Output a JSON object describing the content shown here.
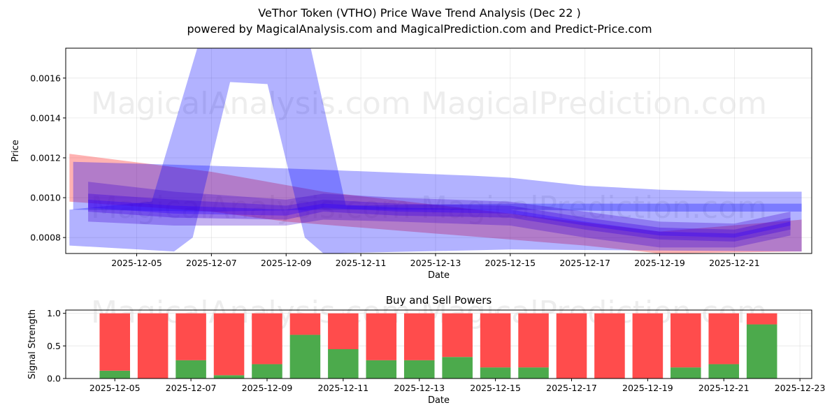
{
  "title": "VeThor Token (VTHO) Price Wave Trend Analysis (Dec 22 )",
  "subtitle": "powered by MagicalAnalysis.com and MagicalPrediction.com and Predict-Price.com",
  "watermarks": [
    "MagicalAnalysis.com",
    "MagicalPrediction.com"
  ],
  "chart_data": [
    {
      "type": "area",
      "title": "",
      "xlabel": "Date",
      "ylabel": "Price",
      "x_unit": "day of December 2025",
      "xlim": [
        3.1,
        23.07
      ],
      "ylim": [
        0.00072,
        0.00175
      ],
      "grid": true,
      "xticks": [
        5,
        7,
        9,
        11,
        13,
        15,
        17,
        19,
        21
      ],
      "xtick_labels": [
        "2025-12-05",
        "2025-12-07",
        "2025-12-09",
        "2025-12-11",
        "2025-12-13",
        "2025-12-15",
        "2025-12-17",
        "2025-12-19",
        "2025-12-21"
      ],
      "yticks": [
        0.0008,
        0.001,
        0.0012,
        0.0014,
        0.0016
      ],
      "ytick_labels": [
        "0.0008",
        "0.0010",
        "0.0012",
        "0.0014",
        "0.0016"
      ],
      "bands": [
        {
          "name": "red-trend-band",
          "color": "#ff0000",
          "opacity": 0.3,
          "upper": [
            [
              3.2,
              0.00122
            ],
            [
              7,
              0.00113
            ],
            [
              10,
              0.00103
            ],
            [
              15,
              0.00092
            ],
            [
              19,
              0.00083
            ],
            [
              22.8,
              0.00089
            ]
          ],
          "lower": [
            [
              3.2,
              0.00098
            ],
            [
              7,
              0.00093
            ],
            [
              9,
              0.00088
            ],
            [
              13,
              0.00082
            ],
            [
              17,
              0.00076
            ],
            [
              19,
              0.00072
            ],
            [
              22.8,
              0.00073
            ]
          ]
        },
        {
          "name": "blue-wide-band",
          "color": "#0000ff",
          "opacity": 0.3,
          "upper": [
            [
              3.3,
              0.00118
            ],
            [
              7,
              0.00116
            ],
            [
              10,
              0.00114
            ],
            [
              14,
              0.00111
            ],
            [
              15,
              0.0011
            ],
            [
              17,
              0.00106
            ],
            [
              19,
              0.00104
            ],
            [
              21,
              0.00103
            ],
            [
              22.8,
              0.00103
            ]
          ],
          "lower": [
            [
              3.3,
              0.00094
            ],
            [
              7,
              0.00093
            ],
            [
              10,
              0.00094
            ],
            [
              15,
              0.00094
            ],
            [
              19,
              0.00093
            ],
            [
              22.8,
              0.00093
            ]
          ]
        },
        {
          "name": "blue-spike-band",
          "color": "#0000ff",
          "opacity": 0.3,
          "upper": [
            [
              3.2,
              0.00094
            ],
            [
              5.4,
              0.00098
            ],
            [
              6.7,
              0.0018
            ],
            [
              9.6,
              0.0018
            ],
            [
              10.6,
              0.00096
            ],
            [
              15,
              0.00097
            ],
            [
              22.8,
              0.00097
            ]
          ],
          "lower": [
            [
              3.2,
              0.00076
            ],
            [
              6.0,
              0.00073
            ],
            [
              6.5,
              0.0008
            ],
            [
              7.5,
              0.00158
            ],
            [
              8.5,
              0.00157
            ],
            [
              9.5,
              0.0008
            ],
            [
              10.0,
              0.00072
            ],
            [
              15,
              0.00074
            ],
            [
              22.8,
              0.00073
            ]
          ]
        },
        {
          "name": "core-band-1",
          "color": "#4000d0",
          "opacity": 0.3,
          "upper": [
            [
              3.7,
              0.00108
            ],
            [
              6,
              0.00103
            ],
            [
              9,
              0.00099
            ],
            [
              10,
              0.00102
            ],
            [
              12,
              0.001
            ],
            [
              15,
              0.00098
            ],
            [
              17,
              0.00093
            ],
            [
              19,
              0.00088
            ],
            [
              21,
              0.00087
            ],
            [
              22.5,
              0.00093
            ]
          ],
          "lower": [
            [
              3.7,
              0.00088
            ],
            [
              6,
              0.00086
            ],
            [
              9,
              0.00086
            ],
            [
              10,
              0.00089
            ],
            [
              12,
              0.00088
            ],
            [
              15,
              0.00086
            ],
            [
              17,
              0.0008
            ],
            [
              19,
              0.00075
            ],
            [
              21,
              0.00075
            ],
            [
              22.5,
              0.00081
            ]
          ]
        },
        {
          "name": "core-band-2",
          "color": "#4000e0",
          "opacity": 0.35,
          "upper": [
            [
              3.7,
              0.00102
            ],
            [
              6,
              0.00099
            ],
            [
              9,
              0.00096
            ],
            [
              10,
              0.00099
            ],
            [
              12,
              0.00097
            ],
            [
              15,
              0.00096
            ],
            [
              17,
              0.0009
            ],
            [
              19,
              0.00085
            ],
            [
              21,
              0.00084
            ],
            [
              22.5,
              0.0009
            ]
          ],
          "lower": [
            [
              3.7,
              0.00093
            ],
            [
              6,
              0.0009
            ],
            [
              9,
              0.00089
            ],
            [
              10,
              0.00093
            ],
            [
              12,
              0.00091
            ],
            [
              15,
              0.0009
            ],
            [
              17,
              0.00084
            ],
            [
              19,
              0.00079
            ],
            [
              21,
              0.00078
            ],
            [
              22.5,
              0.00084
            ]
          ]
        },
        {
          "name": "core-band-3",
          "color": "#3000ff",
          "opacity": 0.35,
          "upper": [
            [
              3.7,
              0.00099
            ],
            [
              6,
              0.00096
            ],
            [
              9,
              0.00094
            ],
            [
              10,
              0.00097
            ],
            [
              12,
              0.00095
            ],
            [
              15,
              0.00094
            ],
            [
              17,
              0.00088
            ],
            [
              19,
              0.00083
            ],
            [
              21,
              0.00082
            ],
            [
              22.5,
              0.00088
            ]
          ],
          "lower": [
            [
              3.7,
              0.00095
            ],
            [
              6,
              0.00092
            ],
            [
              9,
              0.00091
            ],
            [
              10,
              0.00095
            ],
            [
              12,
              0.00093
            ],
            [
              15,
              0.00092
            ],
            [
              17,
              0.00086
            ],
            [
              19,
              0.00081
            ],
            [
              21,
              0.0008
            ],
            [
              22.5,
              0.00086
            ]
          ]
        }
      ]
    },
    {
      "type": "bar",
      "stacked": true,
      "title": "Buy and Sell Powers",
      "xlabel": "Date",
      "ylabel": "Signal Strength",
      "x_unit": "day of December 2025",
      "xlim": [
        3.71,
        23.31
      ],
      "ylim": [
        0,
        1.05
      ],
      "grid": true,
      "xticks": [
        5,
        7,
        9,
        11,
        13,
        15,
        17,
        19,
        21,
        23
      ],
      "xtick_labels": [
        "2025-12-05",
        "2025-12-07",
        "2025-12-09",
        "2025-12-11",
        "2025-12-13",
        "2025-12-15",
        "2025-12-17",
        "2025-12-19",
        "2025-12-21",
        "2025-12-23"
      ],
      "yticks": [
        0,
        0.5,
        1.0
      ],
      "ytick_labels": [
        "0.0",
        "0.5",
        "1.0"
      ],
      "x": [
        5,
        6,
        7,
        8,
        9,
        10,
        11,
        12,
        13,
        14,
        15,
        16,
        17,
        18,
        19,
        20,
        21,
        22
      ],
      "series": [
        {
          "name": "Buy",
          "color": "#4caa4c",
          "values": [
            0.12,
            0,
            0.28,
            0.05,
            0.22,
            0.67,
            0.45,
            0.28,
            0.28,
            0.33,
            0.17,
            0.17,
            0,
            0,
            0,
            0.17,
            0.22,
            0.83
          ]
        },
        {
          "name": "Sell",
          "color": "#ff4c4c",
          "values": [
            0.88,
            1,
            0.72,
            0.95,
            0.78,
            0.33,
            0.55,
            0.72,
            0.72,
            0.67,
            0.83,
            0.83,
            1,
            1,
            1,
            0.83,
            0.78,
            0.17
          ]
        }
      ]
    }
  ]
}
